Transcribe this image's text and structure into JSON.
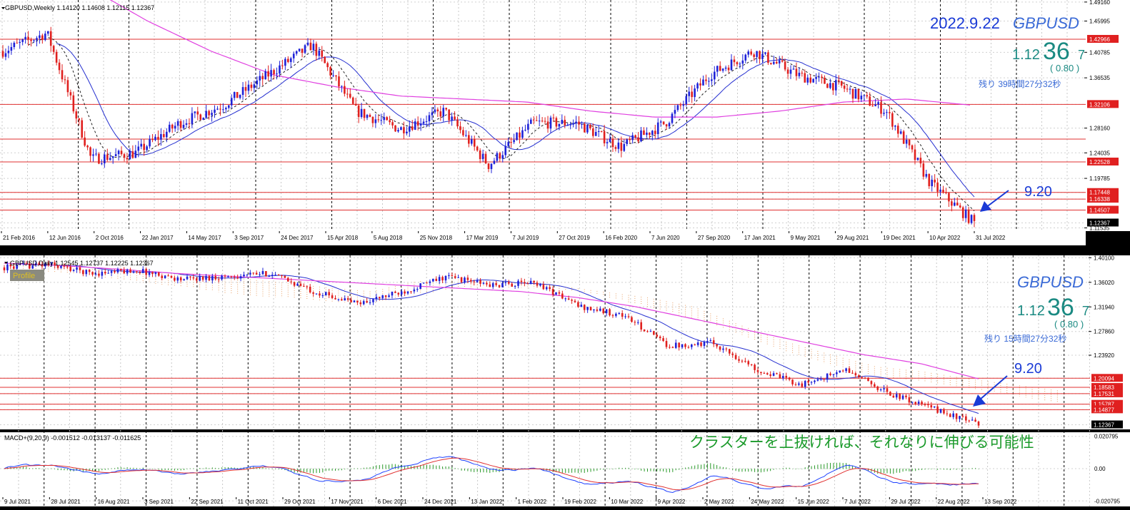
{
  "colors": {
    "bull": "#1e22d8",
    "bear": "#e0201e",
    "ma_long": "#e040e0",
    "ma_short": "#2630d0",
    "support_line": "#e03030",
    "price_label_bg": "#e02020",
    "current_label_bg": "#000000",
    "cloud": "#e9a066",
    "teal": "#1a8a82",
    "annotation_blue": "#1a3ad6",
    "green_note": "#1a9a2a",
    "macd_main": "#1e40ff",
    "macd_signal": "#e03030",
    "macd_hist": "#2a9a2a"
  },
  "weekly": {
    "header": "GBPUSD,Weekly  1.14120 1.14608 1.12115 1.12367",
    "date_title": "2022.9.22",
    "symbol": "GBPUSD",
    "price_prefix": "1.12",
    "price_big": "36",
    "price_last": "7",
    "change": "( 0.80 )",
    "remaining": "残り 39時間27分32秒",
    "annotation": "9.20",
    "price_axis": [
      "1.49160",
      "1.45995",
      "1.42966",
      "1.40785",
      "1.36535",
      "1.32106",
      "1.28160",
      "1.24035",
      "1.22528",
      "1.19785",
      "1.17448",
      "1.16338",
      "1.14507",
      "1.12367",
      "1.11535"
    ],
    "h_lines": [
      "1.42966",
      "1.32106",
      "1.26332",
      "1.22528",
      "1.17448",
      "1.16338",
      "1.14507"
    ],
    "current_price": "1.12367",
    "date_axis": [
      "21 Feb 2016",
      "12 Jun 2016",
      "2 Oct 2016",
      "22 Jan 2017",
      "14 May 2017",
      "3 Sep 2017",
      "24 Dec 2017",
      "15 Apr 2018",
      "5 Aug 2018",
      "25 Nov 2018",
      "17 Mar 2019",
      "7 Jul 2019",
      "27 Oct 2019",
      "16 Feb 2020",
      "7 Jun 2020",
      "27 Sep 2020",
      "17 Jan 2021",
      "9 May 2021",
      "29 Aug 2021",
      "19 Dec 2021",
      "10 Apr 2022",
      "31 Jul 2022"
    ]
  },
  "daily": {
    "header": "GBPUSD,Daily  1.12545 1.12737 1.12225 1.12367",
    "badge": "Profile",
    "symbol": "GBPUSD",
    "price_prefix": "1.12",
    "price_big": "36",
    "price_last": "7",
    "change": "( 0.80 )",
    "remaining": "残り 15時間27分32秒",
    "annotation": "9.20",
    "note": "クラスターを上抜ければ、それなりに伸びる可能性",
    "price_axis": [
      "1.40100",
      "1.36020",
      "1.31940",
      "1.27860",
      "1.23920",
      "1.20094",
      "1.18583",
      "1.17531",
      "1.15787",
      "1.14877",
      "1.12367"
    ],
    "h_lines": [
      "1.20094",
      "1.18583",
      "1.17531",
      "1.15787",
      "1.14877"
    ],
    "current_price": "1.12367",
    "date_axis": [
      "9 Jul 2021",
      "28 Jul 2021",
      "16 Aug 2021",
      "3 Sep 2021",
      "22 Sep 2021",
      "11 Oct 2021",
      "29 Oct 2021",
      "17 Nov 2021",
      "6 Dec 2021",
      "24 Dec 2021",
      "13 Jan 2022",
      "1 Feb 2022",
      "19 Feb 2022",
      "10 Mar 2022",
      "9 Apr 2022",
      "2 May 2022",
      "24 May 2022",
      "15 Jun 2022",
      "7 Jul 2022",
      "29 Jul 2022",
      "22 Aug 2022",
      "13 Sep 2022"
    ]
  },
  "macd": {
    "header": "MACD+(9,20,9) -0.001512 -0.013137 -0.011625",
    "axis": [
      "0.020795",
      "0.00",
      "-0.020795"
    ]
  },
  "chart_data": [
    {
      "type": "line",
      "title": "GBPUSD,Weekly  1.14120 1.14608 1.12115 1.12367",
      "x": [
        "21 Feb 2016",
        "12 Jun 2016",
        "2 Oct 2016",
        "22 Jan 2017",
        "14 May 2017",
        "3 Sep 2017",
        "24 Dec 2017",
        "15 Apr 2018",
        "5 Aug 2018",
        "25 Nov 2018",
        "17 Mar 2019",
        "7 Jul 2019",
        "27 Oct 2019",
        "16 Feb 2020",
        "7 Jun 2020",
        "27 Sep 2020",
        "17 Jan 2021",
        "9 May 2021",
        "29 Aug 2021",
        "19 Dec 2021",
        "10 Apr 2022",
        "31 Jul 2022",
        "22 Sep 2022"
      ],
      "series": [
        {
          "values": [
            1.41,
            1.44,
            1.23,
            1.24,
            1.29,
            1.32,
            1.37,
            1.42,
            1.31,
            1.28,
            1.31,
            1.22,
            1.29,
            1.29,
            1.25,
            1.29,
            1.37,
            1.41,
            1.37,
            1.35,
            1.31,
            1.19,
            1.124
          ]
        }
      ],
      "ylim": [
        1.115,
        1.495
      ],
      "grid": true
    },
    {
      "type": "line",
      "title": "GBPUSD,Daily  1.12545 1.12737 1.12225 1.12367",
      "x": [
        "9 Jul 2021",
        "28 Jul 2021",
        "16 Aug 2021",
        "3 Sep 2021",
        "22 Sep 2021",
        "11 Oct 2021",
        "29 Oct 2021",
        "17 Nov 2021",
        "6 Dec 2021",
        "24 Dec 2021",
        "13 Jan 2022",
        "1 Feb 2022",
        "19 Feb 2022",
        "10 Mar 2022",
        "9 Apr 2022",
        "2 May 2022",
        "24 May 2022",
        "15 Jun 2022",
        "7 Jul 2022",
        "29 Jul 2022",
        "22 Aug 2022",
        "13 Sep 2022",
        "22 Sep 2022"
      ],
      "series": [
        {
          "values": [
            1.385,
            1.39,
            1.375,
            1.38,
            1.365,
            1.37,
            1.375,
            1.345,
            1.325,
            1.345,
            1.37,
            1.355,
            1.36,
            1.32,
            1.305,
            1.255,
            1.26,
            1.215,
            1.19,
            1.215,
            1.175,
            1.15,
            1.124
          ]
        }
      ],
      "ylim": [
        1.118,
        1.405
      ],
      "grid": true
    }
  ]
}
